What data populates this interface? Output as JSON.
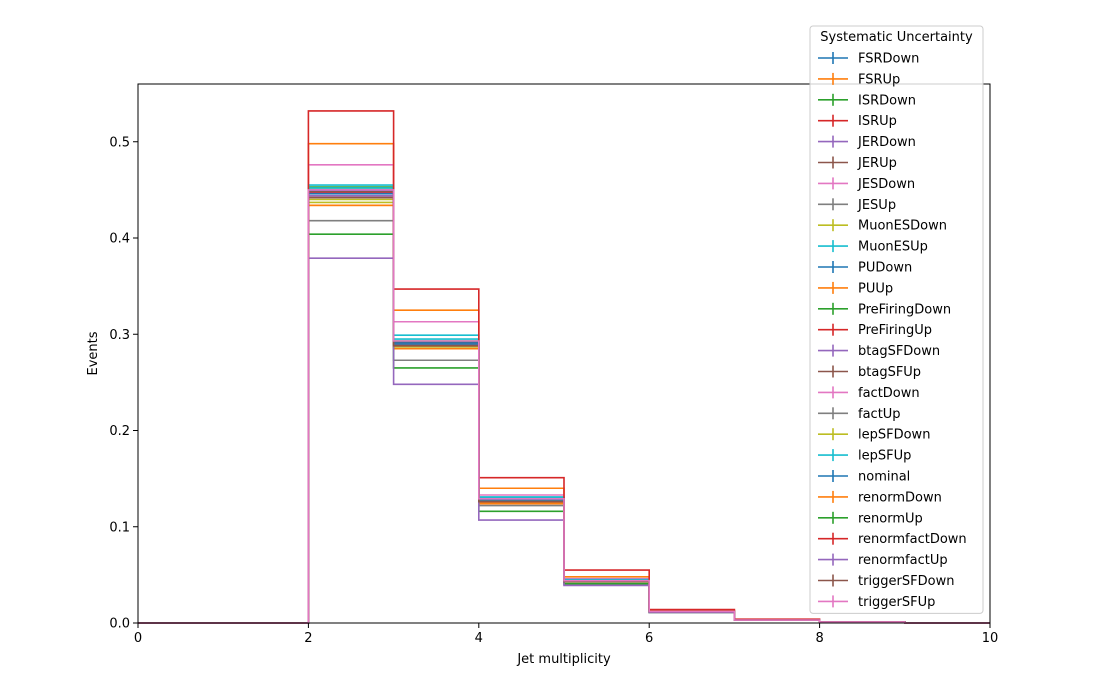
{
  "chart_data": {
    "type": "step",
    "xlabel": "Jet multiplicity",
    "ylabel": "Events",
    "xlim": [
      0,
      10
    ],
    "ylim": [
      0,
      0.56
    ],
    "xticks": [
      "0",
      "2",
      "4",
      "6",
      "8",
      "10"
    ],
    "yticks": [
      "0.0",
      "0.1",
      "0.2",
      "0.3",
      "0.4",
      "0.5"
    ],
    "bin_edges": [
      0,
      1,
      2,
      3,
      4,
      5,
      6,
      7,
      8,
      9,
      10
    ],
    "legend": {
      "title": "Systematic Uncertainty",
      "placement": "top-right"
    },
    "series": [
      {
        "name": "FSRDown",
        "color": "#1f77b4",
        "values": [
          0,
          0,
          0.449,
          0.291,
          0.128,
          0.044,
          0.012,
          0.003,
          0.001,
          0
        ]
      },
      {
        "name": "FSRUp",
        "color": "#ff7f0e",
        "values": [
          0,
          0,
          0.498,
          0.325,
          0.14,
          0.048,
          0.013,
          0.003,
          0.001,
          0
        ]
      },
      {
        "name": "ISRDown",
        "color": "#2ca02c",
        "values": [
          0,
          0,
          0.453,
          0.29,
          0.127,
          0.044,
          0.012,
          0.003,
          0.001,
          0
        ]
      },
      {
        "name": "ISRUp",
        "color": "#d62728",
        "values": [
          0,
          0,
          0.447,
          0.292,
          0.129,
          0.044,
          0.012,
          0.003,
          0.001,
          0
        ]
      },
      {
        "name": "JERDown",
        "color": "#9467bd",
        "values": [
          0,
          0,
          0.449,
          0.291,
          0.128,
          0.044,
          0.012,
          0.003,
          0.001,
          0
        ]
      },
      {
        "name": "JERUp",
        "color": "#8c564b",
        "values": [
          0,
          0,
          0.448,
          0.291,
          0.129,
          0.044,
          0.012,
          0.003,
          0.001,
          0
        ]
      },
      {
        "name": "JESDown",
        "color": "#e377c2",
        "values": [
          0,
          0,
          0.476,
          0.313,
          0.133,
          0.046,
          0.012,
          0.003,
          0.001,
          0
        ]
      },
      {
        "name": "JESUp",
        "color": "#7f7f7f",
        "values": [
          0,
          0,
          0.418,
          0.273,
          0.122,
          0.04,
          0.011,
          0.003,
          0.001,
          0
        ]
      },
      {
        "name": "MuonESDown",
        "color": "#bcbd22",
        "values": [
          0,
          0,
          0.437,
          0.287,
          0.126,
          0.043,
          0.012,
          0.003,
          0.001,
          0
        ]
      },
      {
        "name": "MuonESUp",
        "color": "#17becf",
        "values": [
          0,
          0,
          0.455,
          0.299,
          0.131,
          0.045,
          0.012,
          0.003,
          0.001,
          0
        ]
      },
      {
        "name": "PUDown",
        "color": "#1f77b4",
        "values": [
          0,
          0,
          0.45,
          0.292,
          0.128,
          0.044,
          0.012,
          0.003,
          0.001,
          0
        ]
      },
      {
        "name": "PUUp",
        "color": "#ff7f0e",
        "values": [
          0,
          0,
          0.434,
          0.285,
          0.125,
          0.043,
          0.012,
          0.003,
          0.001,
          0
        ]
      },
      {
        "name": "PreFiringDown",
        "color": "#2ca02c",
        "values": [
          0,
          0,
          0.452,
          0.293,
          0.128,
          0.044,
          0.012,
          0.003,
          0.001,
          0
        ]
      },
      {
        "name": "PreFiringUp",
        "color": "#d62728",
        "values": [
          0,
          0,
          0.447,
          0.29,
          0.127,
          0.044,
          0.012,
          0.003,
          0.001,
          0
        ]
      },
      {
        "name": "btagSFDown",
        "color": "#9467bd",
        "values": [
          0,
          0,
          0.444,
          0.289,
          0.13,
          0.045,
          0.012,
          0.003,
          0.001,
          0
        ]
      },
      {
        "name": "btagSFUp",
        "color": "#8c564b",
        "values": [
          0,
          0,
          0.442,
          0.289,
          0.127,
          0.044,
          0.012,
          0.003,
          0.001,
          0
        ]
      },
      {
        "name": "factDown",
        "color": "#e377c2",
        "values": [
          0,
          0,
          0.446,
          0.29,
          0.128,
          0.044,
          0.012,
          0.003,
          0.001,
          0
        ]
      },
      {
        "name": "factUp",
        "color": "#7f7f7f",
        "values": [
          0,
          0,
          0.446,
          0.29,
          0.128,
          0.044,
          0.012,
          0.003,
          0.001,
          0
        ]
      },
      {
        "name": "lepSFDown",
        "color": "#bcbd22",
        "values": [
          0,
          0,
          0.44,
          0.287,
          0.126,
          0.043,
          0.012,
          0.003,
          0.001,
          0
        ]
      },
      {
        "name": "lepSFUp",
        "color": "#17becf",
        "values": [
          0,
          0,
          0.452,
          0.295,
          0.13,
          0.045,
          0.012,
          0.003,
          0.001,
          0
        ]
      },
      {
        "name": "nominal",
        "color": "#1f77b4",
        "values": [
          0,
          0,
          0.446,
          0.29,
          0.128,
          0.044,
          0.012,
          0.003,
          0.001,
          0
        ]
      },
      {
        "name": "renormDown",
        "color": "#ff7f0e",
        "values": [
          0,
          0,
          0.434,
          0.288,
          0.124,
          0.043,
          0.012,
          0.003,
          0.001,
          0
        ]
      },
      {
        "name": "renormUp",
        "color": "#2ca02c",
        "values": [
          0,
          0,
          0.404,
          0.265,
          0.116,
          0.041,
          0.011,
          0.003,
          0.001,
          0
        ]
      },
      {
        "name": "renormfactDown",
        "color": "#d62728",
        "values": [
          0,
          0,
          0.532,
          0.347,
          0.151,
          0.055,
          0.014,
          0.004,
          0.001,
          0
        ]
      },
      {
        "name": "renormfactUp",
        "color": "#9467bd",
        "values": [
          0,
          0,
          0.379,
          0.248,
          0.107,
          0.039,
          0.011,
          0.003,
          0.001,
          0
        ]
      },
      {
        "name": "triggerSFDown",
        "color": "#8c564b",
        "values": [
          0,
          0,
          0.442,
          0.288,
          0.126,
          0.043,
          0.012,
          0.003,
          0.001,
          0
        ]
      },
      {
        "name": "triggerSFUp",
        "color": "#e377c2",
        "values": [
          0,
          0,
          0.45,
          0.293,
          0.129,
          0.044,
          0.012,
          0.003,
          0.001,
          0
        ]
      }
    ]
  }
}
